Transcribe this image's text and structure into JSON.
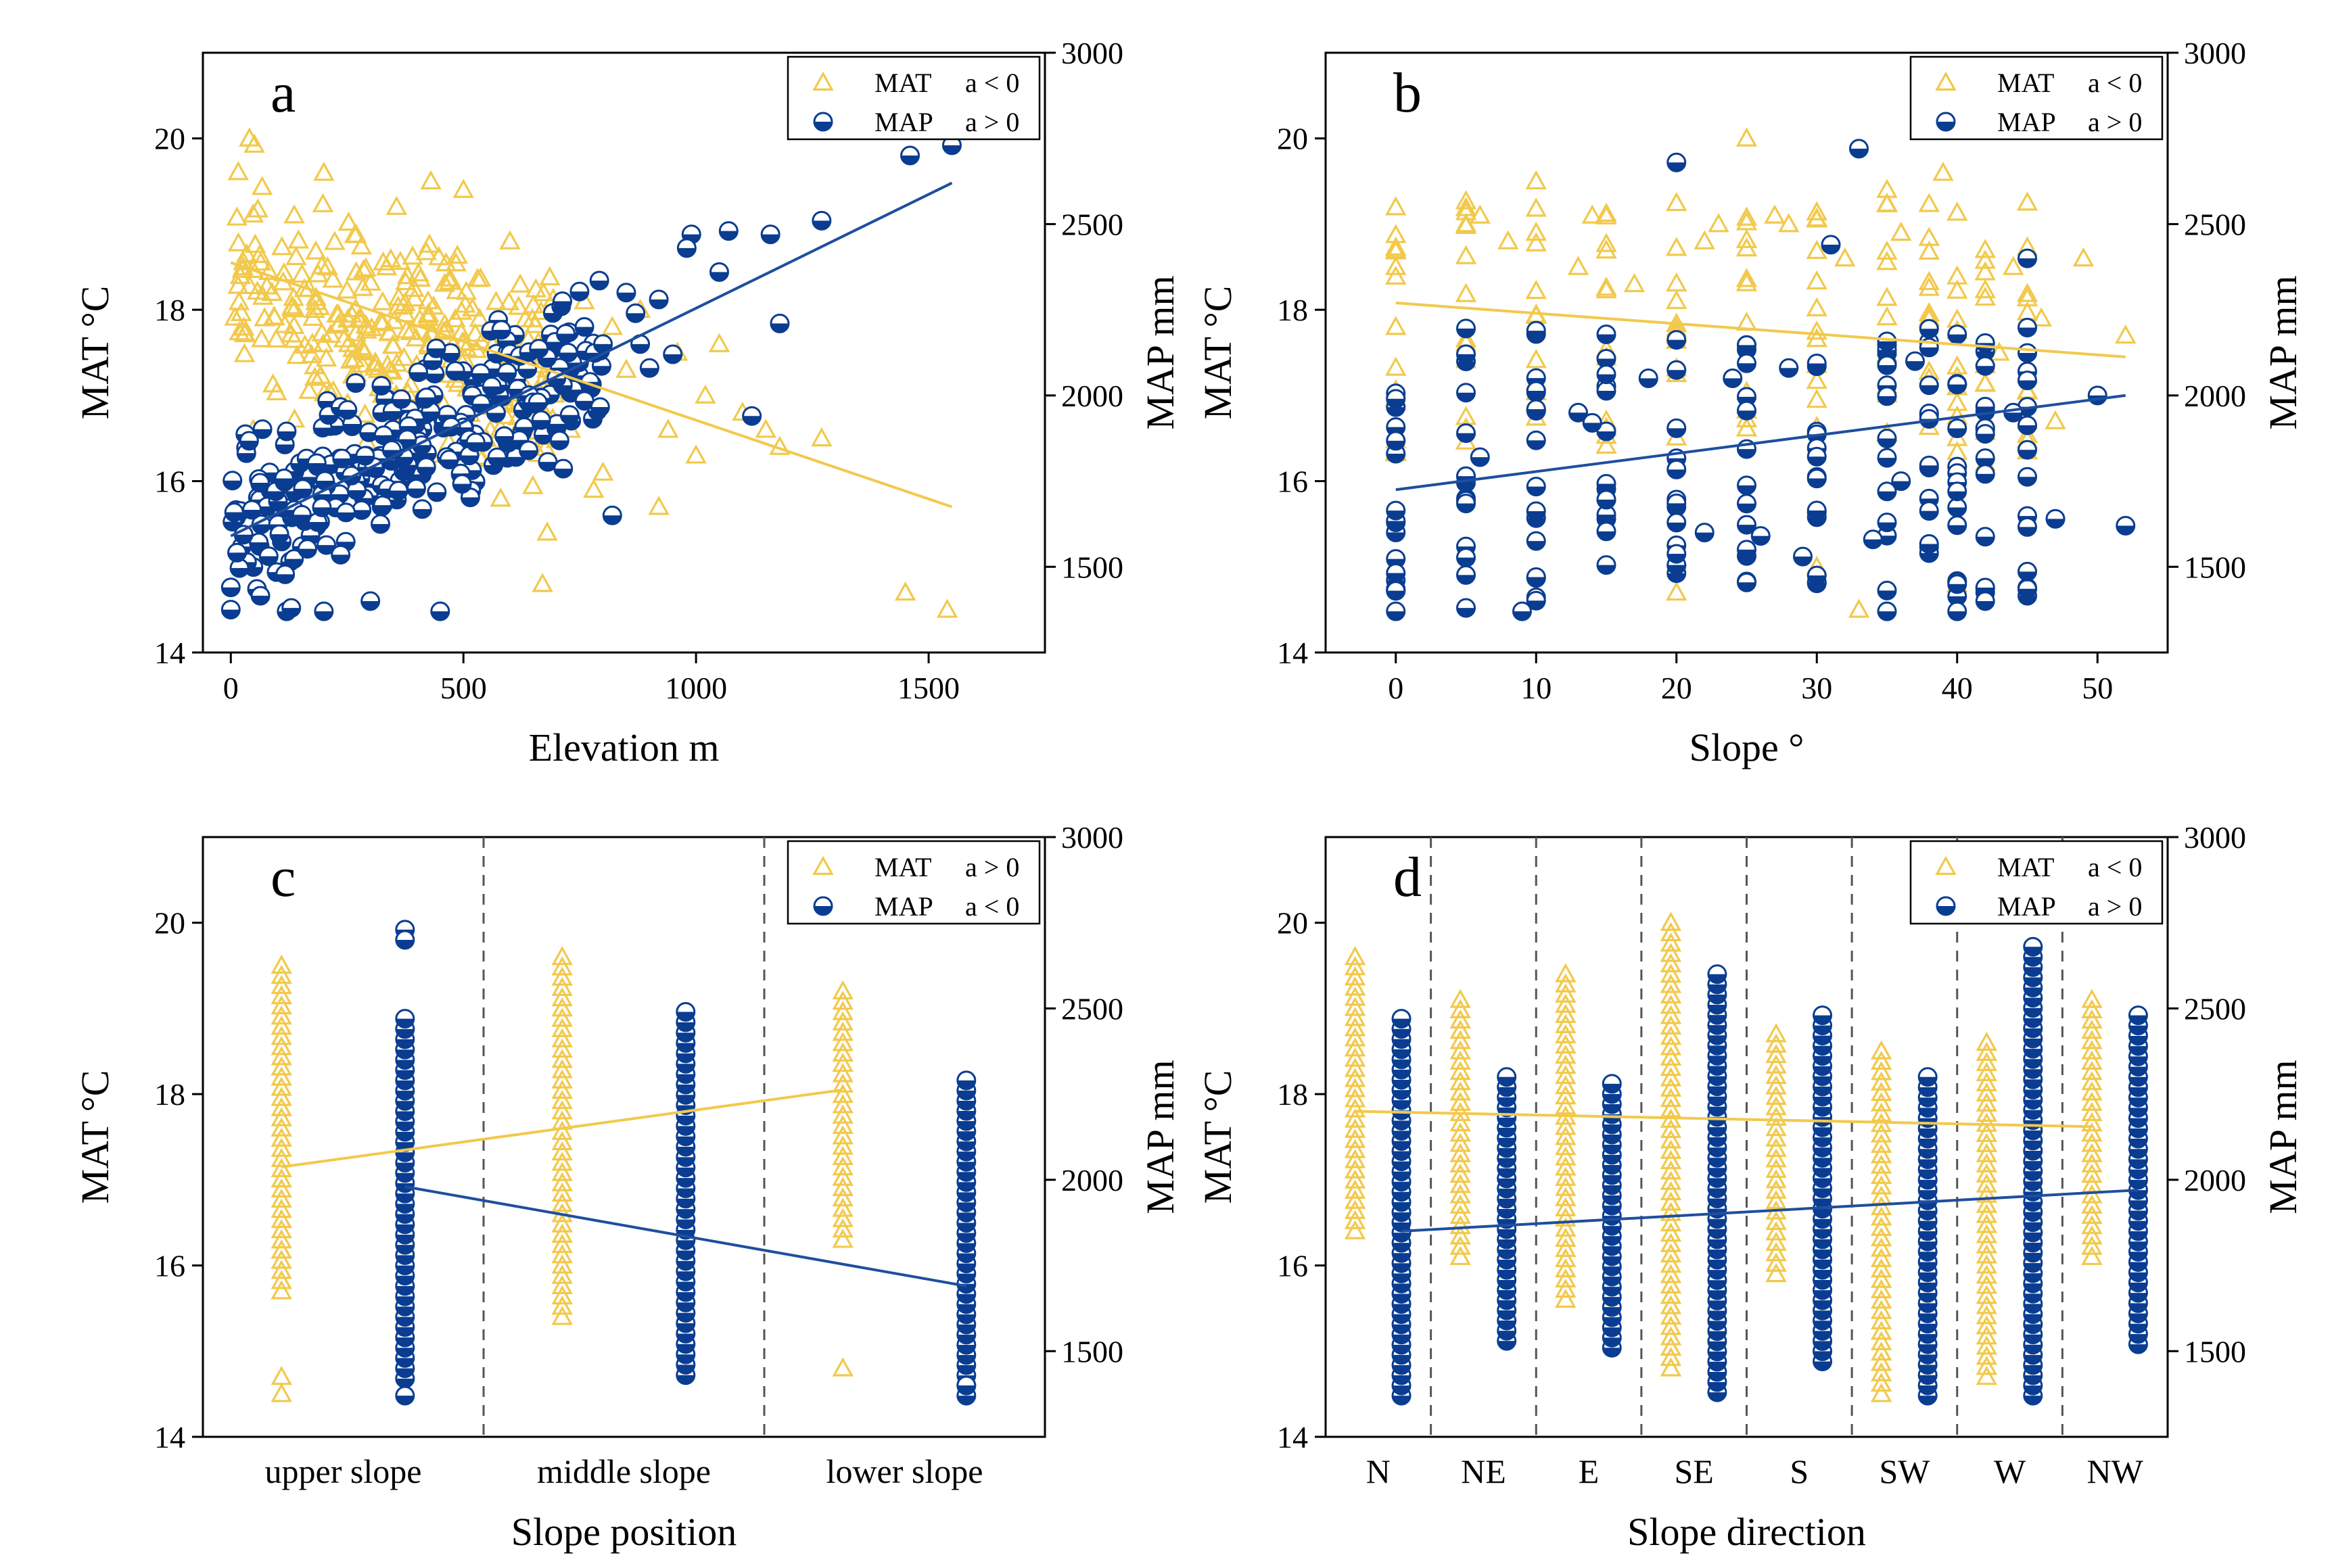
{
  "colors": {
    "mat": "#F2C94C",
    "map": "#0A3D91",
    "mat_line": "#F2C94C",
    "map_line": "#1E4E9E",
    "axis": "#000000",
    "divider": "#555555"
  },
  "chart_data": [
    {
      "type": "scatter",
      "panel": "a",
      "title": "",
      "xlabel": "Elevation m",
      "ylabel": "MAT °C",
      "y2label": "MAP mm",
      "xlim": [
        -60,
        1750
      ],
      "xticks": [
        0,
        500,
        1000,
        1500
      ],
      "ylim": [
        14,
        21
      ],
      "yticks": [
        14,
        16,
        18,
        20
      ],
      "y2lim": [
        1250,
        3000
      ],
      "y2ticks": [
        1500,
        2000,
        2500,
        3000
      ],
      "legend": [
        {
          "series": "MAT",
          "text": "MAT",
          "sign": "a < 0"
        },
        {
          "series": "MAP",
          "text": "MAP",
          "sign": "a > 0"
        }
      ],
      "fit_lines": {
        "mat": [
          [
            0,
            18.55
          ],
          [
            1550,
            15.7
          ]
        ],
        "map": [
          [
            0,
            1590
          ],
          [
            1550,
            2620
          ]
        ]
      },
      "series": [
        {
          "name": "MAT",
          "axis": "left",
          "marker": "triangle",
          "generated": {
            "n": 300,
            "x": [
              0,
              700
            ],
            "y_center": [
              18.3,
              17.1
            ],
            "y_spread": 1.2,
            "seed": 11
          },
          "points": [
            [
              40,
              20.0
            ],
            [
              200,
              19.6
            ],
            [
              430,
              19.5
            ],
            [
              500,
              19.4
            ],
            [
              1450,
              14.7
            ],
            [
              1540,
              14.5
            ],
            [
              1270,
              16.5
            ],
            [
              1180,
              16.4
            ],
            [
              1000,
              16.3
            ],
            [
              940,
              16.6
            ],
            [
              920,
              15.7
            ],
            [
              850,
              17.3
            ],
            [
              800,
              16.1
            ],
            [
              670,
              14.8
            ],
            [
              680,
              15.4
            ],
            [
              780,
              15.9
            ],
            [
              730,
              16.6
            ],
            [
              600,
              18.8
            ],
            [
              1100,
              16.8
            ],
            [
              1050,
              17.6
            ],
            [
              880,
              18.0
            ],
            [
              960,
              17.5
            ],
            [
              1020,
              17.0
            ],
            [
              1150,
              16.6
            ],
            [
              820,
              17.8
            ],
            [
              760,
              18.1
            ]
          ]
        },
        {
          "name": "MAP",
          "axis": "right",
          "marker": "half-circle",
          "generated": {
            "n": 300,
            "x": [
              0,
              800
            ],
            "y_center": [
              1640,
              2090
            ],
            "y_spread": 230,
            "seed": 23
          },
          "points": [
            [
              0,
              1375
            ],
            [
              0,
              1440
            ],
            [
              120,
              1370
            ],
            [
              130,
              1380
            ],
            [
              200,
              1370
            ],
            [
              300,
              1400
            ],
            [
              450,
              1370
            ],
            [
              1460,
              2700
            ],
            [
              1550,
              2730
            ],
            [
              1270,
              2510
            ],
            [
              1160,
              2470
            ],
            [
              1070,
              2480
            ],
            [
              990,
              2470
            ],
            [
              920,
              2280
            ],
            [
              880,
              2150
            ],
            [
              820,
              1650
            ],
            [
              850,
              2300
            ],
            [
              980,
              2430
            ],
            [
              1050,
              2360
            ],
            [
              1180,
              2210
            ],
            [
              1120,
              1940
            ],
            [
              950,
              2120
            ],
            [
              900,
              2080
            ],
            [
              870,
              2240
            ],
            [
              800,
              2150
            ],
            [
              760,
              2200
            ],
            [
              720,
              2180
            ],
            [
              640,
              1840
            ],
            [
              660,
              1980
            ],
            [
              700,
              2050
            ]
          ]
        }
      ]
    },
    {
      "type": "scatter",
      "panel": "b",
      "title": "",
      "xlabel": "Slope °",
      "ylabel": "MAT °C",
      "y2label": "MAP mm",
      "xlim": [
        -5,
        55
      ],
      "xticks": [
        0,
        10,
        20,
        30,
        40,
        50
      ],
      "ylim": [
        14,
        21
      ],
      "yticks": [
        14,
        16,
        18,
        20
      ],
      "y2lim": [
        1250,
        3000
      ],
      "y2ticks": [
        1500,
        2000,
        2500,
        3000
      ],
      "legend": [
        {
          "series": "MAT",
          "text": "MAT",
          "sign": "a < 0"
        },
        {
          "series": "MAP",
          "text": "MAP",
          "sign": "a > 0"
        }
      ],
      "fit_lines": {
        "mat": [
          [
            0,
            18.08
          ],
          [
            52,
            17.45
          ]
        ],
        "map": [
          [
            0,
            1725
          ],
          [
            52,
            2000
          ]
        ]
      },
      "series": [
        {
          "name": "MAT",
          "axis": "left",
          "marker": "triangle",
          "columns": {
            "x": [
              0,
              5,
              10,
              15,
              20,
              25,
              30,
              35,
              38,
              40,
              42,
              45
            ],
            "y_range": [
              16.2,
              19.3
            ],
            "per_col": 12,
            "seed": 31
          },
          "points": [
            [
              0,
              18.7
            ],
            [
              0,
              18.5
            ],
            [
              0,
              17.8
            ],
            [
              5,
              19.0
            ],
            [
              6,
              19.1
            ],
            [
              8,
              18.8
            ],
            [
              10,
              19.5
            ],
            [
              10,
              18.9
            ],
            [
              13,
              18.5
            ],
            [
              14,
              19.1
            ],
            [
              17,
              18.3
            ],
            [
              20,
              14.7
            ],
            [
              22,
              18.8
            ],
            [
              23,
              19.0
            ],
            [
              25,
              20.0
            ],
            [
              27,
              19.1
            ],
            [
              28,
              19.0
            ],
            [
              30,
              15.0
            ],
            [
              32,
              18.6
            ],
            [
              33,
              14.5
            ],
            [
              35,
              19.4
            ],
            [
              36,
              18.9
            ],
            [
              39,
              19.6
            ],
            [
              40,
              14.8
            ],
            [
              44,
              18.5
            ],
            [
              46,
              17.9
            ],
            [
              49,
              18.6
            ],
            [
              52,
              17.7
            ],
            [
              47,
              16.7
            ],
            [
              43,
              17.5
            ]
          ]
        },
        {
          "name": "MAP",
          "axis": "right",
          "marker": "half-circle",
          "columns": {
            "x": [
              0,
              5,
              10,
              15,
              20,
              25,
              30,
              35,
              38,
              40,
              42,
              45
            ],
            "y_range": [
              1400,
              2200
            ],
            "per_col": 14,
            "seed": 37
          },
          "points": [
            [
              0,
              1370
            ],
            [
              0,
              1430
            ],
            [
              0,
              1990
            ],
            [
              5,
              1380
            ],
            [
              6,
              1820
            ],
            [
              9,
              1370
            ],
            [
              10,
              1470
            ],
            [
              10,
              1960
            ],
            [
              13,
              1950
            ],
            [
              14,
              1920
            ],
            [
              18,
              2050
            ],
            [
              20,
              2680
            ],
            [
              22,
              1600
            ],
            [
              24,
              2050
            ],
            [
              28,
              2080
            ],
            [
              31,
              2440
            ],
            [
              33,
              2720
            ],
            [
              34,
              1580
            ],
            [
              35,
              1370
            ],
            [
              37,
              2100
            ],
            [
              40,
              1370
            ],
            [
              42,
              1400
            ],
            [
              45,
              2400
            ],
            [
              47,
              1640
            ],
            [
              50,
              2000
            ],
            [
              52,
              1620
            ],
            [
              29,
              1530
            ],
            [
              26,
              1590
            ],
            [
              44,
              1950
            ],
            [
              36,
              1750
            ]
          ]
        }
      ]
    },
    {
      "type": "scatter",
      "panel": "c",
      "title": "",
      "xlabel": "Slope position",
      "ylabel": "MAT °C",
      "y2label": "MAP mm",
      "categories": [
        "upper slope",
        "middle slope",
        "lower slope"
      ],
      "ylim": [
        14,
        21
      ],
      "yticks": [
        14,
        16,
        18,
        20
      ],
      "y2lim": [
        1250,
        3000
      ],
      "y2ticks": [
        1500,
        2000,
        2500,
        3000
      ],
      "legend": [
        {
          "series": "MAT",
          "text": "MAT",
          "sign": "a > 0"
        },
        {
          "series": "MAP",
          "text": "MAP",
          "sign": "a < 0"
        }
      ],
      "fit_lines": {
        "mat": [
          [
            0,
            17.15
          ],
          [
            2,
            18.05
          ]
        ],
        "map": [
          [
            0,
            1980
          ],
          [
            2,
            1690
          ]
        ]
      },
      "series": [
        {
          "name": "MAT",
          "axis": "left",
          "marker": "triangle",
          "columns": {
            "range": [
              [
                15.7,
                19.5
              ],
              [
                15.4,
                19.6
              ],
              [
                16.3,
                19.2
              ]
            ],
            "extra": [
              [
                14.5,
                14.7
              ],
              [],
              [
                14.8
              ]
            ]
          }
        },
        {
          "name": "MAP",
          "axis": "right",
          "marker": "half-circle",
          "columns": {
            "range": [
              [
                1420,
                2470
              ],
              [
                1430,
                2490
              ],
              [
                1370,
                2290
              ]
            ],
            "extra": [
              [
                1370,
                2730,
                2700
              ],
              [],
              [
                1400
              ]
            ]
          }
        }
      ]
    },
    {
      "type": "scatter",
      "panel": "d",
      "title": "",
      "xlabel": "Slope direction",
      "ylabel": "MAT °C",
      "y2label": "MAP mm",
      "categories": [
        "N",
        "NE",
        "E",
        "SE",
        "S",
        "SW",
        "W",
        "NW"
      ],
      "ylim": [
        14,
        21
      ],
      "yticks": [
        14,
        16,
        18,
        20
      ],
      "y2lim": [
        1250,
        3000
      ],
      "y2ticks": [
        1500,
        2000,
        2500,
        3000
      ],
      "legend": [
        {
          "series": "MAT",
          "text": "MAT",
          "sign": "a < 0"
        },
        {
          "series": "MAP",
          "text": "MAP",
          "sign": "a > 0"
        }
      ],
      "fit_lines": {
        "mat": [
          [
            0,
            17.8
          ],
          [
            7,
            17.62
          ]
        ],
        "map": [
          [
            0,
            1850
          ],
          [
            7,
            1970
          ]
        ]
      },
      "series": [
        {
          "name": "MAT",
          "axis": "left",
          "marker": "triangle",
          "columns": {
            "range": [
              [
                16.4,
                19.6
              ],
              [
                16.1,
                19.1
              ],
              [
                15.6,
                19.4
              ],
              [
                14.8,
                20.0
              ],
              [
                15.9,
                18.7
              ],
              [
                14.5,
                18.5
              ],
              [
                14.7,
                18.6
              ],
              [
                16.1,
                19.1
              ]
            ]
          }
        },
        {
          "name": "MAP",
          "axis": "right",
          "marker": "half-circle",
          "columns": {
            "range": [
              [
                1370,
                2470
              ],
              [
                1530,
                2300
              ],
              [
                1510,
                2280
              ],
              [
                1380,
                2600
              ],
              [
                1470,
                2480
              ],
              [
                1370,
                2300
              ],
              [
                1370,
                2680
              ],
              [
                1520,
                2480
              ]
            ]
          }
        }
      ]
    }
  ]
}
